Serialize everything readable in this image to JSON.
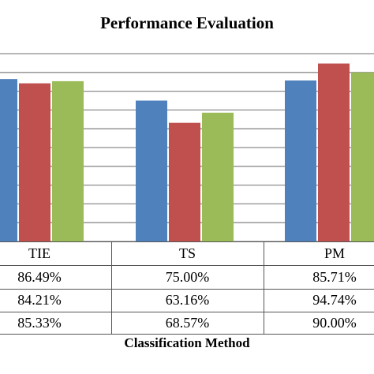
{
  "chart_data": {
    "type": "bar",
    "title": "Performance Evaluation",
    "xlabel": "Classification Method",
    "categories": [
      "TIE",
      "TS",
      "PM"
    ],
    "series": [
      {
        "values": [
          86.49,
          75.0,
          85.71
        ],
        "labels": [
          "86.49%",
          "75.00%",
          "85.71%"
        ],
        "color": "#4f81bd"
      },
      {
        "values": [
          84.21,
          63.16,
          94.74
        ],
        "labels": [
          "84.21%",
          "63.16%",
          "94.74%"
        ],
        "color": "#c0504d"
      },
      {
        "values": [
          85.33,
          68.57,
          90.0
        ],
        "labels": [
          "85.33%",
          "68.57%",
          "90.00%"
        ],
        "color": "#9bbb59"
      }
    ],
    "ylim": [
      0,
      100
    ],
    "grid": true
  }
}
